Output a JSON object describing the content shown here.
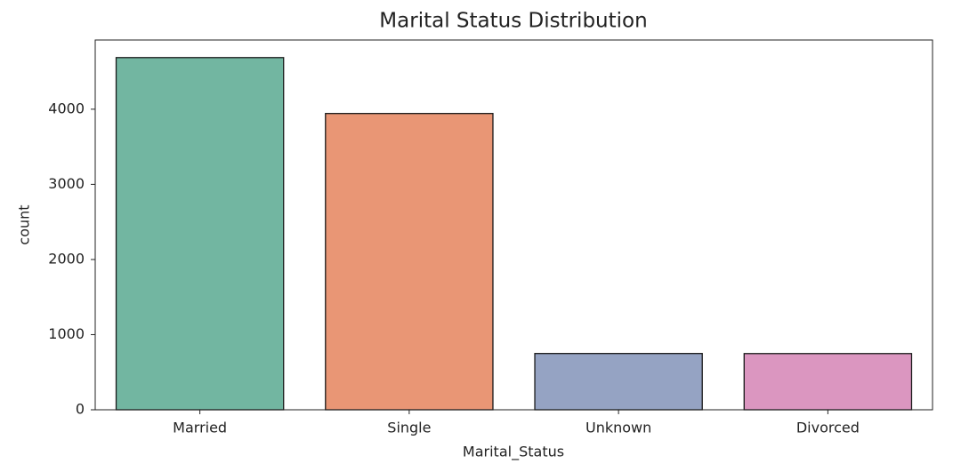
{
  "chart_data": {
    "type": "bar",
    "title": "Marital Status Distribution",
    "x_label": "Marital_Status",
    "y_label": "count",
    "categories": [
      "Married",
      "Single",
      "Unknown",
      "Divorced"
    ],
    "values": [
      4687,
      3943,
      749,
      748
    ],
    "colors": [
      "#72b6a1",
      "#e99675",
      "#95a3c3",
      "#db96c0"
    ],
    "ylim": [
      0,
      4921
    ],
    "yticks": [
      0,
      1000,
      2000,
      3000,
      4000
    ],
    "grid": false
  }
}
